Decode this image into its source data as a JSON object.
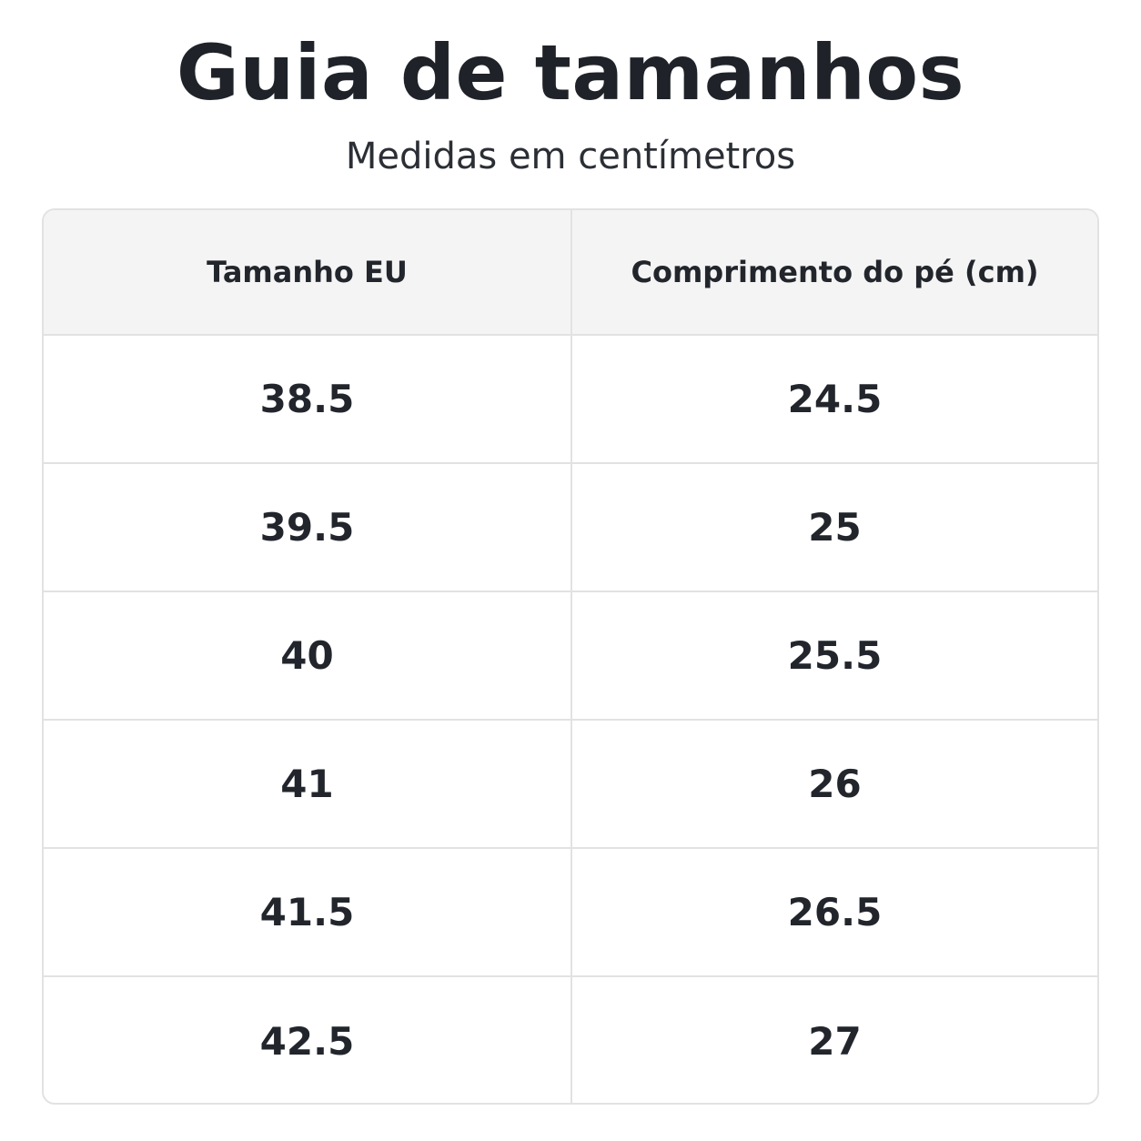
{
  "title": "Guia de tamanhos",
  "subtitle": "Medidas em centímetros",
  "table": {
    "headers": [
      "Tamanho EU",
      "Comprimento do pé (cm)"
    ],
    "rows": [
      [
        "38.5",
        "24.5"
      ],
      [
        "39.5",
        "25"
      ],
      [
        "40",
        "25.5"
      ],
      [
        "41",
        "26"
      ],
      [
        "41.5",
        "26.5"
      ],
      [
        "42.5",
        "27"
      ]
    ]
  }
}
